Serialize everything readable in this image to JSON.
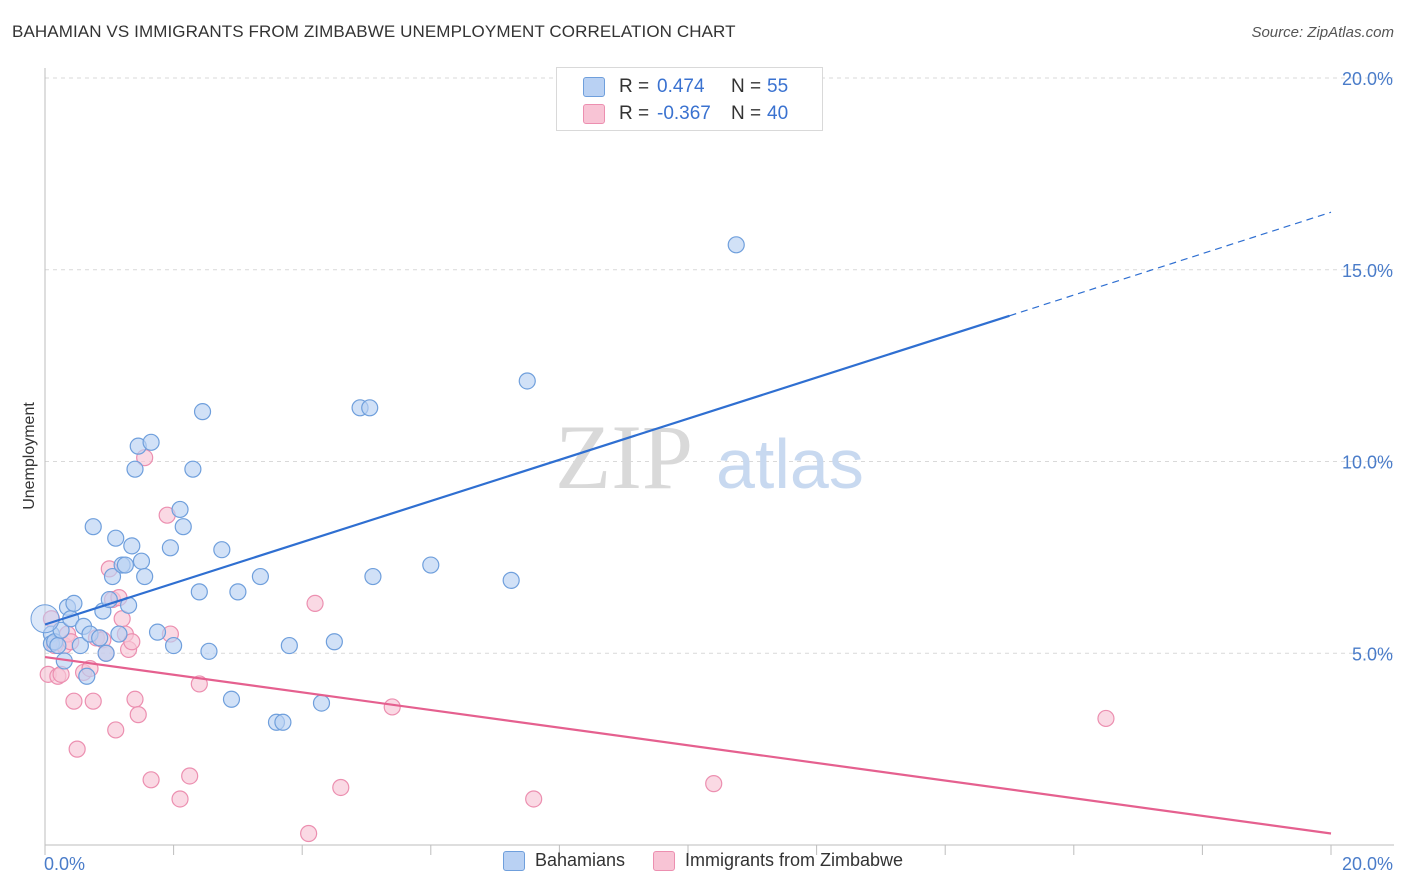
{
  "header": {
    "title": "BAHAMIAN VS IMMIGRANTS FROM ZIMBABWE UNEMPLOYMENT CORRELATION CHART",
    "source": "Source: ZipAtlas.com"
  },
  "watermark": {
    "part1": "ZIP",
    "part2": "atlas"
  },
  "legend": {
    "rows": [
      {
        "r_label": "R =",
        "r_value": "0.474",
        "n_label": "N =",
        "n_value": "55"
      },
      {
        "r_label": "R =",
        "r_value": "-0.367",
        "n_label": "N =",
        "n_value": "40"
      }
    ]
  },
  "colors": {
    "blue_fill": "#b9d1f3",
    "blue_stroke": "#6f9fdc",
    "blue_line": "#2f6fd1",
    "pink_fill": "#f8c4d5",
    "pink_stroke": "#ec8fb0",
    "pink_line": "#e5608f",
    "grid": "#d9d9d9",
    "tick_text": "#4a7cc9"
  },
  "chart_data": {
    "type": "scatter",
    "title": "BAHAMIAN VS IMMIGRANTS FROM ZIMBABWE UNEMPLOYMENT CORRELATION CHART",
    "xlabel": "",
    "ylabel": "Unemployment",
    "xlim": [
      0,
      20
    ],
    "ylim": [
      0,
      20
    ],
    "x_tick_labels": [
      "0.0%",
      "20.0%"
    ],
    "y_ticks": [
      5,
      10,
      15,
      20
    ],
    "y_tick_labels": [
      "5.0%",
      "10.0%",
      "15.0%",
      "20.0%"
    ],
    "grid": true,
    "legend_position": "bottom",
    "series": [
      {
        "name": "Bahamians",
        "color": "#6f9fdc",
        "r": 0.474,
        "n": 55,
        "trend": {
          "x0": 0.0,
          "y0": 5.75,
          "x1": 15.0,
          "y1": 13.8,
          "dash_x1": 20.0,
          "dash_y1": 16.5
        },
        "points": [
          [
            0.1,
            5.5
          ],
          [
            0.1,
            5.25
          ],
          [
            0.15,
            5.3
          ],
          [
            0.2,
            5.2
          ],
          [
            0.25,
            5.6
          ],
          [
            0.3,
            4.8
          ],
          [
            0.35,
            6.2
          ],
          [
            0.4,
            5.9
          ],
          [
            0.45,
            6.3
          ],
          [
            0.55,
            5.2
          ],
          [
            0.6,
            5.7
          ],
          [
            0.65,
            4.4
          ],
          [
            0.7,
            5.5
          ],
          [
            0.75,
            8.3
          ],
          [
            0.85,
            5.4
          ],
          [
            0.9,
            6.1
          ],
          [
            0.95,
            5.0
          ],
          [
            1.0,
            6.4
          ],
          [
            1.05,
            7.0
          ],
          [
            1.1,
            8.0
          ],
          [
            1.15,
            5.5
          ],
          [
            1.2,
            7.3
          ],
          [
            1.25,
            7.3
          ],
          [
            1.3,
            6.25
          ],
          [
            1.35,
            7.8
          ],
          [
            1.4,
            9.8
          ],
          [
            1.45,
            10.4
          ],
          [
            1.5,
            7.4
          ],
          [
            1.55,
            7.0
          ],
          [
            1.65,
            10.5
          ],
          [
            1.75,
            5.55
          ],
          [
            1.95,
            7.75
          ],
          [
            2.0,
            5.2
          ],
          [
            2.1,
            8.75
          ],
          [
            2.15,
            8.3
          ],
          [
            2.3,
            9.8
          ],
          [
            2.4,
            6.6
          ],
          [
            2.45,
            11.3
          ],
          [
            2.55,
            5.05
          ],
          [
            2.75,
            7.7
          ],
          [
            2.9,
            3.8
          ],
          [
            3.0,
            6.6
          ],
          [
            3.35,
            7.0
          ],
          [
            3.6,
            3.2
          ],
          [
            3.7,
            3.2
          ],
          [
            3.8,
            5.2
          ],
          [
            4.3,
            3.7
          ],
          [
            4.5,
            5.3
          ],
          [
            4.9,
            11.4
          ],
          [
            5.05,
            11.4
          ],
          [
            5.1,
            7.0
          ],
          [
            6.0,
            7.3
          ],
          [
            7.25,
            6.9
          ],
          [
            7.5,
            12.1
          ],
          [
            10.75,
            15.65
          ]
        ]
      },
      {
        "name": "Immigrants from Zimbabwe",
        "color": "#ec8fb0",
        "r": -0.367,
        "n": 40,
        "trend": {
          "x0": 0.0,
          "y0": 4.9,
          "x1": 20.0,
          "y1": 0.3
        },
        "points": [
          [
            0.05,
            4.45
          ],
          [
            0.15,
            5.2
          ],
          [
            0.2,
            4.4
          ],
          [
            0.25,
            4.45
          ],
          [
            0.3,
            5.2
          ],
          [
            0.35,
            5.5
          ],
          [
            0.4,
            5.3
          ],
          [
            0.45,
            3.75
          ],
          [
            0.5,
            2.5
          ],
          [
            0.6,
            4.5
          ],
          [
            0.7,
            4.6
          ],
          [
            0.75,
            3.75
          ],
          [
            0.8,
            5.4
          ],
          [
            0.9,
            5.35
          ],
          [
            0.95,
            5.0
          ],
          [
            1.0,
            7.2
          ],
          [
            1.05,
            6.4
          ],
          [
            1.1,
            3.0
          ],
          [
            1.15,
            6.45
          ],
          [
            1.2,
            5.9
          ],
          [
            1.25,
            5.5
          ],
          [
            1.3,
            5.1
          ],
          [
            1.35,
            5.3
          ],
          [
            1.4,
            3.8
          ],
          [
            1.45,
            3.4
          ],
          [
            1.55,
            10.1
          ],
          [
            1.65,
            1.7
          ],
          [
            1.9,
            8.6
          ],
          [
            1.95,
            5.5
          ],
          [
            2.1,
            1.2
          ],
          [
            2.25,
            1.8
          ],
          [
            2.4,
            4.2
          ],
          [
            4.1,
            0.3
          ],
          [
            4.2,
            6.3
          ],
          [
            4.6,
            1.5
          ],
          [
            5.4,
            3.6
          ],
          [
            7.6,
            1.2
          ],
          [
            10.4,
            1.6
          ],
          [
            16.5,
            3.3
          ],
          [
            0.1,
            5.9
          ]
        ]
      }
    ]
  }
}
